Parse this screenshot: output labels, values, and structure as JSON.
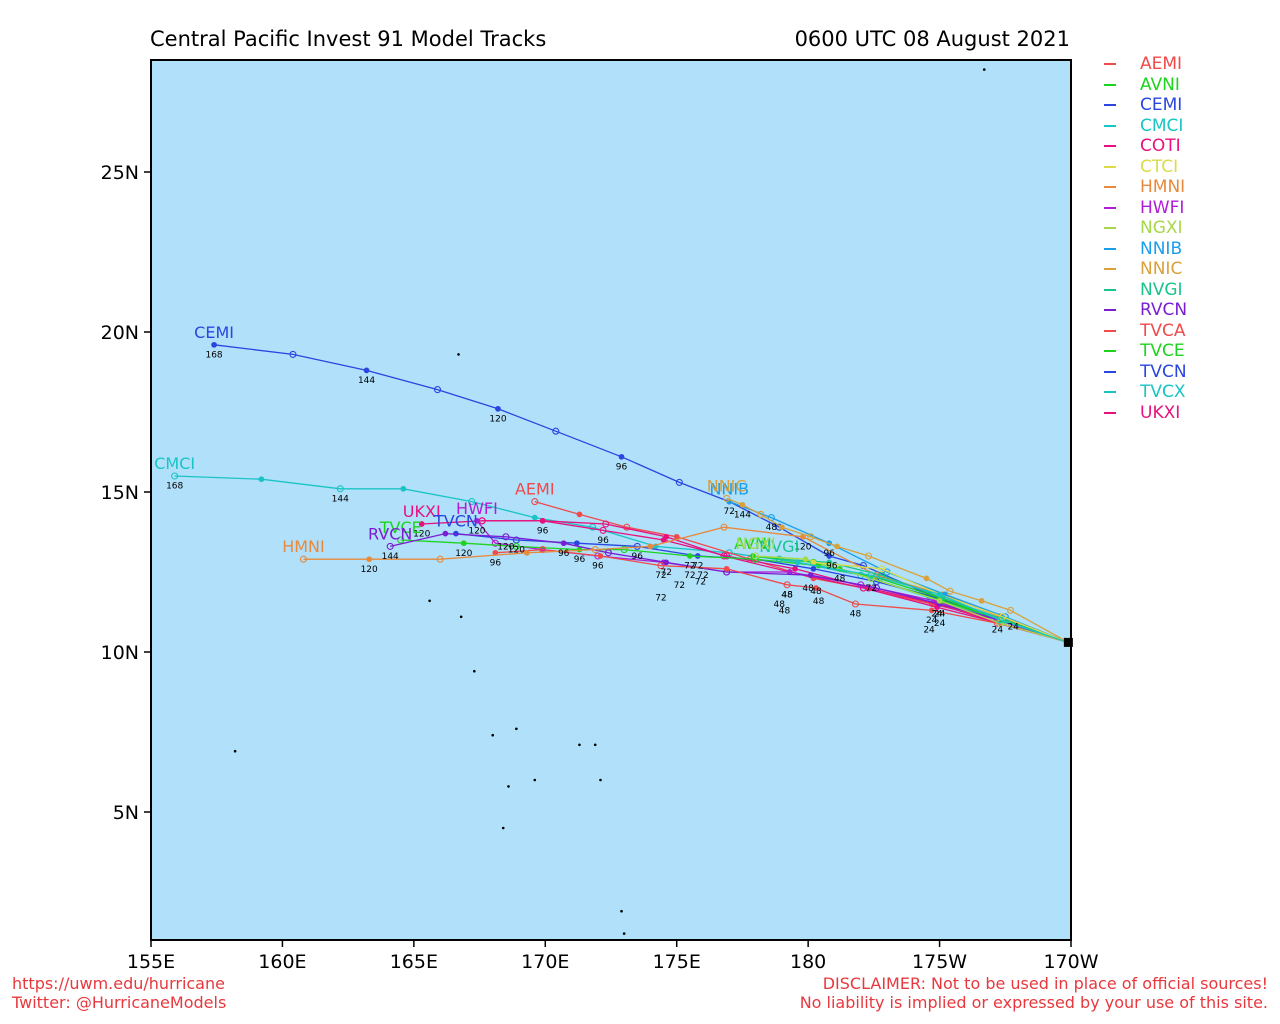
{
  "header": {
    "title": "Central Pacific Invest 91 Model Tracks",
    "datetime": "0600 UTC 08 August 2021"
  },
  "footer": {
    "left_line1": "https://uwm.edu/hurricane",
    "left_line2": "Twitter: @HurricaneModels",
    "right_line1": "DISCLAIMER: Not to be used in place of official sources!",
    "right_line2": "No liability is implied or expressed by your use of this site."
  },
  "map": {
    "lon_range": [
      155,
      190
    ],
    "lat_range": [
      1,
      28.5
    ],
    "lon_ticks": [
      {
        "lon": 155,
        "label": "155E"
      },
      {
        "lon": 160,
        "label": "160E"
      },
      {
        "lon": 165,
        "label": "165E"
      },
      {
        "lon": 170,
        "label": "170E"
      },
      {
        "lon": 175,
        "label": "175E"
      },
      {
        "lon": 180,
        "label": "180"
      },
      {
        "lon": 185,
        "label": "175W"
      },
      {
        "lon": 190,
        "label": "170W"
      }
    ],
    "lat_ticks": [
      {
        "lat": 5,
        "label": "5N"
      },
      {
        "lat": 10,
        "label": "10N"
      },
      {
        "lat": 15,
        "label": "15N"
      },
      {
        "lat": 20,
        "label": "20N"
      },
      {
        "lat": 25,
        "label": "25N"
      }
    ],
    "ocean_color": "#b0e0fa",
    "start": [
      189.9,
      10.3
    ]
  },
  "legend": [
    {
      "name": "AEMI",
      "color": "#f04a4a"
    },
    {
      "name": "AVNI",
      "color": "#1ed31e"
    },
    {
      "name": "CEMI",
      "color": "#2a45e0"
    },
    {
      "name": "CMCI",
      "color": "#1ac4c4"
    },
    {
      "name": "COTI",
      "color": "#e8107e"
    },
    {
      "name": "CTCI",
      "color": "#dbdb4a"
    },
    {
      "name": "HMNI",
      "color": "#e88a3c"
    },
    {
      "name": "HWFI",
      "color": "#b01ed3"
    },
    {
      "name": "NGXI",
      "color": "#a6d84a"
    },
    {
      "name": "NNIB",
      "color": "#1a9ee8"
    },
    {
      "name": "NNIC",
      "color": "#d9a13a"
    },
    {
      "name": "NVGI",
      "color": "#1ac48a"
    },
    {
      "name": "RVCN",
      "color": "#7a1ed3"
    },
    {
      "name": "TVCA",
      "color": "#f04a4a"
    },
    {
      "name": "TVCE",
      "color": "#1ed31e"
    },
    {
      "name": "TVCN",
      "color": "#2a45e0"
    },
    {
      "name": "TVCX",
      "color": "#1ac4c4"
    },
    {
      "name": "UKXI",
      "color": "#e8107e"
    }
  ],
  "tracks": [
    {
      "name": "CEMI",
      "color": "#2a45e0",
      "end_label": "CEMI",
      "points": [
        [
          189.9,
          10.3
        ],
        [
          187.2,
          11.0
        ],
        [
          184.6,
          11.8
        ],
        [
          182.1,
          12.7
        ],
        [
          180.8,
          13.0
        ],
        [
          178.9,
          13.9
        ],
        [
          177.0,
          14.7
        ],
        [
          175.1,
          15.3
        ],
        [
          172.9,
          16.1
        ],
        [
          170.4,
          16.9
        ],
        [
          168.2,
          17.6
        ],
        [
          165.9,
          18.2
        ],
        [
          163.2,
          18.8
        ],
        [
          160.4,
          19.3
        ],
        [
          157.4,
          19.6
        ]
      ],
      "labels": [
        [
          180.9,
          12.7,
          "96"
        ],
        [
          177.0,
          14.4,
          "72"
        ],
        [
          172.9,
          15.8,
          "96"
        ],
        [
          168.2,
          17.3,
          "120"
        ],
        [
          163.2,
          18.5,
          "144"
        ],
        [
          157.4,
          19.3,
          "168"
        ]
      ]
    },
    {
      "name": "CMCI",
      "color": "#1ac4c4",
      "end_label": "CMCI",
      "points": [
        [
          189.9,
          10.3
        ],
        [
          187.2,
          11.0
        ],
        [
          184.6,
          11.7
        ],
        [
          182.0,
          12.4
        ],
        [
          179.6,
          12.8
        ],
        [
          177.0,
          13.1
        ],
        [
          174.2,
          13.3
        ],
        [
          171.8,
          13.9
        ],
        [
          169.6,
          14.2
        ],
        [
          167.2,
          14.7
        ],
        [
          164.6,
          15.1
        ],
        [
          162.2,
          15.1
        ],
        [
          159.2,
          15.4
        ],
        [
          155.9,
          15.5
        ]
      ],
      "labels": [
        [
          162.2,
          14.8,
          "144"
        ],
        [
          155.9,
          15.2,
          "168"
        ]
      ]
    },
    {
      "name": "AEMI",
      "color": "#f04a4a",
      "end_label": "AEMI",
      "points": [
        [
          189.9,
          10.3
        ],
        [
          187.3,
          11.0
        ],
        [
          184.7,
          11.5
        ],
        [
          182.1,
          12.0
        ],
        [
          180.2,
          12.3
        ],
        [
          177.8,
          12.9
        ],
        [
          175.0,
          13.6
        ],
        [
          173.1,
          13.9
        ],
        [
          171.3,
          14.3
        ],
        [
          169.6,
          14.7
        ]
      ],
      "labels": []
    },
    {
      "name": "COTI",
      "color": "#e8107e",
      "end_label": "",
      "points": [
        [
          189.9,
          10.3
        ],
        [
          187.3,
          10.9
        ],
        [
          184.9,
          11.4
        ],
        [
          182.1,
          12.0
        ],
        [
          179.3,
          12.5
        ],
        [
          176.8,
          13.0
        ],
        [
          174.6,
          13.6
        ],
        [
          172.3,
          14.0
        ],
        [
          169.9,
          14.1
        ],
        [
          167.6,
          14.1
        ]
      ],
      "labels": []
    },
    {
      "name": "UKXI",
      "color": "#e8107e",
      "end_label": "UKXI",
      "points": [
        [
          189.9,
          10.3
        ],
        [
          187.3,
          10.9
        ],
        [
          184.9,
          11.5
        ],
        [
          182.3,
          12.0
        ],
        [
          179.5,
          12.6
        ],
        [
          176.9,
          13.0
        ],
        [
          174.5,
          13.5
        ],
        [
          172.2,
          13.8
        ],
        [
          169.9,
          14.1
        ],
        [
          167.6,
          14.1
        ],
        [
          165.3,
          14.0
        ]
      ],
      "labels": [
        [
          172.2,
          13.5,
          "96"
        ],
        [
          169.9,
          13.8,
          "96"
        ],
        [
          165.3,
          13.7,
          "120"
        ]
      ]
    },
    {
      "name": "HWFI",
      "color": "#b01ed3",
      "end_label": "HWFI",
      "points": [
        [
          189.9,
          10.3
        ],
        [
          187.2,
          11.0
        ],
        [
          184.8,
          11.6
        ],
        [
          182.0,
          12.1
        ],
        [
          179.3,
          12.5
        ],
        [
          176.9,
          12.5
        ],
        [
          174.5,
          12.8
        ],
        [
          172.0,
          13.0
        ],
        [
          169.9,
          13.2
        ],
        [
          168.1,
          13.4
        ],
        [
          167.4,
          14.1
        ]
      ],
      "labels": [
        [
          172.0,
          12.7,
          "96"
        ],
        [
          167.4,
          13.8,
          "120"
        ]
      ]
    },
    {
      "name": "TVCN",
      "color": "#2a45e0",
      "end_label": "TVCN",
      "points": [
        [
          189.9,
          10.3
        ],
        [
          187.3,
          11.0
        ],
        [
          184.9,
          11.7
        ],
        [
          182.6,
          12.2
        ],
        [
          180.2,
          12.6
        ],
        [
          178.0,
          12.9
        ],
        [
          175.8,
          13.0
        ],
        [
          173.5,
          13.3
        ],
        [
          171.2,
          13.4
        ],
        [
          168.9,
          13.5
        ],
        [
          166.6,
          13.7
        ]
      ],
      "labels": [
        [
          175.8,
          12.7,
          "72"
        ],
        [
          173.5,
          13.0,
          "96"
        ],
        [
          168.9,
          13.2,
          "120"
        ]
      ]
    },
    {
      "name": "TVCE",
      "color": "#1ed31e",
      "end_label": "TVCE",
      "points": [
        [
          189.9,
          10.3
        ],
        [
          187.4,
          11.0
        ],
        [
          185.0,
          11.7
        ],
        [
          182.7,
          12.3
        ],
        [
          180.4,
          12.7
        ],
        [
          178.0,
          12.9
        ],
        [
          175.5,
          13.0
        ],
        [
          173.0,
          13.2
        ],
        [
          171.3,
          13.2
        ],
        [
          168.9,
          13.3
        ],
        [
          166.9,
          13.4
        ],
        [
          164.5,
          13.5
        ]
      ],
      "labels": [
        [
          175.5,
          12.7,
          "72"
        ],
        [
          171.3,
          12.9,
          "96"
        ],
        [
          166.9,
          13.1,
          "120"
        ]
      ]
    },
    {
      "name": "RVCN",
      "color": "#7a1ed3",
      "end_label": "RVCN",
      "points": [
        [
          189.9,
          10.3
        ],
        [
          187.3,
          11.0
        ],
        [
          185.0,
          11.5
        ],
        [
          182.6,
          12.0
        ],
        [
          180.1,
          12.4
        ],
        [
          176.9,
          12.5
        ],
        [
          174.6,
          12.8
        ],
        [
          172.4,
          13.1
        ],
        [
          170.7,
          13.4
        ],
        [
          168.5,
          13.6
        ],
        [
          166.2,
          13.7
        ],
        [
          164.1,
          13.3
        ]
      ],
      "labels": [
        [
          174.6,
          12.5,
          "72"
        ],
        [
          170.7,
          13.1,
          "96"
        ],
        [
          168.5,
          13.3,
          "120"
        ],
        [
          164.1,
          13.0,
          "144"
        ]
      ]
    },
    {
      "name": "TVCA",
      "color": "#f04a4a",
      "end_label": "",
      "points": [
        [
          189.9,
          10.3
        ],
        [
          187.2,
          10.9
        ],
        [
          184.7,
          11.3
        ],
        [
          181.8,
          11.5
        ],
        [
          180.3,
          12.0
        ],
        [
          179.2,
          12.1
        ],
        [
          176.9,
          12.6
        ],
        [
          174.4,
          12.7
        ],
        [
          172.1,
          13.0
        ],
        [
          169.9,
          13.2
        ],
        [
          168.1,
          13.1
        ]
      ],
      "labels": [
        [
          181.8,
          11.2,
          "48"
        ],
        [
          179.2,
          11.8,
          "48"
        ],
        [
          174.4,
          12.4,
          "72"
        ],
        [
          168.1,
          12.8,
          "96"
        ]
      ]
    },
    {
      "name": "HMNI",
      "color": "#e88a3c",
      "end_label": "HMNI",
      "points": [
        [
          189.9,
          10.3
        ],
        [
          187.3,
          11.1
        ],
        [
          185.1,
          11.8
        ],
        [
          182.6,
          12.4
        ],
        [
          179.8,
          13.6
        ],
        [
          176.8,
          13.9
        ],
        [
          174.0,
          13.3
        ],
        [
          171.9,
          13.2
        ],
        [
          169.3,
          13.1
        ],
        [
          166.0,
          12.9
        ],
        [
          163.3,
          12.9
        ],
        [
          160.8,
          12.9
        ]
      ],
      "labels": [
        [
          179.8,
          13.3,
          "120"
        ],
        [
          163.3,
          12.6,
          "120"
        ]
      ]
    },
    {
      "name": "NNIB",
      "color": "#1a9ee8",
      "end_label": "NNIB",
      "points": [
        [
          189.9,
          10.3
        ],
        [
          187.5,
          11.1
        ],
        [
          185.2,
          11.8
        ],
        [
          183.0,
          12.5
        ],
        [
          180.8,
          13.4
        ],
        [
          178.6,
          14.2
        ],
        [
          177.0,
          14.7
        ]
      ],
      "labels": [
        [
          180.8,
          13.1,
          "96"
        ],
        [
          178.6,
          13.9,
          "48"
        ]
      ]
    },
    {
      "name": "NNIC",
      "color": "#d9a13a",
      "end_label": "NNIC",
      "points": [
        [
          189.9,
          10.3
        ],
        [
          187.7,
          11.3
        ],
        [
          186.6,
          11.6
        ],
        [
          185.4,
          11.9
        ],
        [
          184.5,
          12.3
        ],
        [
          182.3,
          13.0
        ],
        [
          181.1,
          13.3
        ],
        [
          180.1,
          13.6
        ],
        [
          179.0,
          13.9
        ],
        [
          178.2,
          14.3
        ],
        [
          177.5,
          14.6
        ],
        [
          176.9,
          14.8
        ]
      ],
      "labels": [
        [
          177.5,
          14.3,
          "144"
        ]
      ]
    },
    {
      "name": "AVNI",
      "color": "#1ed31e",
      "end_label": "AVNI",
      "points": [
        [
          189.9,
          10.3
        ],
        [
          187.4,
          11.0
        ],
        [
          185.1,
          11.6
        ],
        [
          182.4,
          12.3
        ],
        [
          181.2,
          12.6
        ],
        [
          180.2,
          12.8
        ],
        [
          177.9,
          13.0
        ]
      ],
      "labels": [
        [
          182.4,
          12.0,
          "72"
        ],
        [
          181.2,
          12.3,
          "48"
        ]
      ]
    },
    {
      "name": "NVGI",
      "color": "#1ac48a",
      "end_label": "NVGI",
      "points": [
        [
          189.9,
          10.3
        ],
        [
          187.5,
          11.0
        ],
        [
          185.1,
          11.7
        ],
        [
          182.8,
          12.4
        ],
        [
          180.8,
          12.8
        ],
        [
          178.9,
          12.9
        ]
      ],
      "labels": []
    },
    {
      "name": "NGXI",
      "color": "#a6d84a",
      "end_label": "NGXI",
      "points": [
        [
          189.9,
          10.3
        ],
        [
          187.3,
          10.9
        ],
        [
          185.0,
          11.6
        ],
        [
          182.4,
          12.3
        ],
        [
          179.9,
          12.9
        ],
        [
          178.0,
          13.0
        ]
      ],
      "labels": []
    },
    {
      "name": "CTCI",
      "color": "#dbdb4a",
      "end_label": "",
      "points": [
        [
          189.9,
          10.3
        ],
        [
          187.4,
          11.1
        ],
        [
          185.0,
          11.8
        ],
        [
          182.8,
          12.6
        ],
        [
          180.2,
          12.8
        ]
      ],
      "labels": []
    },
    {
      "name": "TVCX",
      "color": "#1ac4c4",
      "end_label": "",
      "points": [
        [
          189.9,
          10.3
        ],
        [
          187.3,
          11.0
        ],
        [
          185.0,
          11.8
        ],
        [
          182.4,
          12.4
        ],
        [
          179.6,
          12.8
        ]
      ],
      "labels": []
    }
  ],
  "extra_labels": [
    [
      185.0,
      11.2,
      "24"
    ],
    [
      185.0,
      10.9,
      "24"
    ],
    [
      184.9,
      11.2,
      "24"
    ],
    [
      184.7,
      11.0,
      "24"
    ],
    [
      184.6,
      10.7,
      "24"
    ],
    [
      187.8,
      10.8,
      "24"
    ],
    [
      187.2,
      10.7,
      "24"
    ],
    [
      180.0,
      12.0,
      "48"
    ],
    [
      180.3,
      11.9,
      "48"
    ],
    [
      179.2,
      11.8,
      "48"
    ],
    [
      178.9,
      11.5,
      "48"
    ],
    [
      179.1,
      11.3,
      "48"
    ],
    [
      180.4,
      11.6,
      "48"
    ],
    [
      175.5,
      12.4,
      "72"
    ],
    [
      176.0,
      12.4,
      "72"
    ],
    [
      175.9,
      12.2,
      "72"
    ],
    [
      175.1,
      12.1,
      "72"
    ],
    [
      174.4,
      11.7,
      "72"
    ]
  ],
  "islands": [
    [
      158.2,
      6.9
    ],
    [
      166.7,
      19.3
    ],
    [
      186.7,
      28.2
    ],
    [
      165.6,
      11.6
    ],
    [
      166.8,
      11.1
    ],
    [
      167.3,
      9.4
    ],
    [
      168.0,
      7.4
    ],
    [
      168.6,
      5.8
    ],
    [
      168.4,
      4.5
    ],
    [
      169.6,
      6.0
    ],
    [
      171.3,
      7.1
    ],
    [
      171.9,
      7.1
    ],
    [
      172.1,
      6.0
    ],
    [
      172.9,
      1.9
    ],
    [
      173.0,
      1.2
    ],
    [
      168.9,
      7.6
    ]
  ]
}
